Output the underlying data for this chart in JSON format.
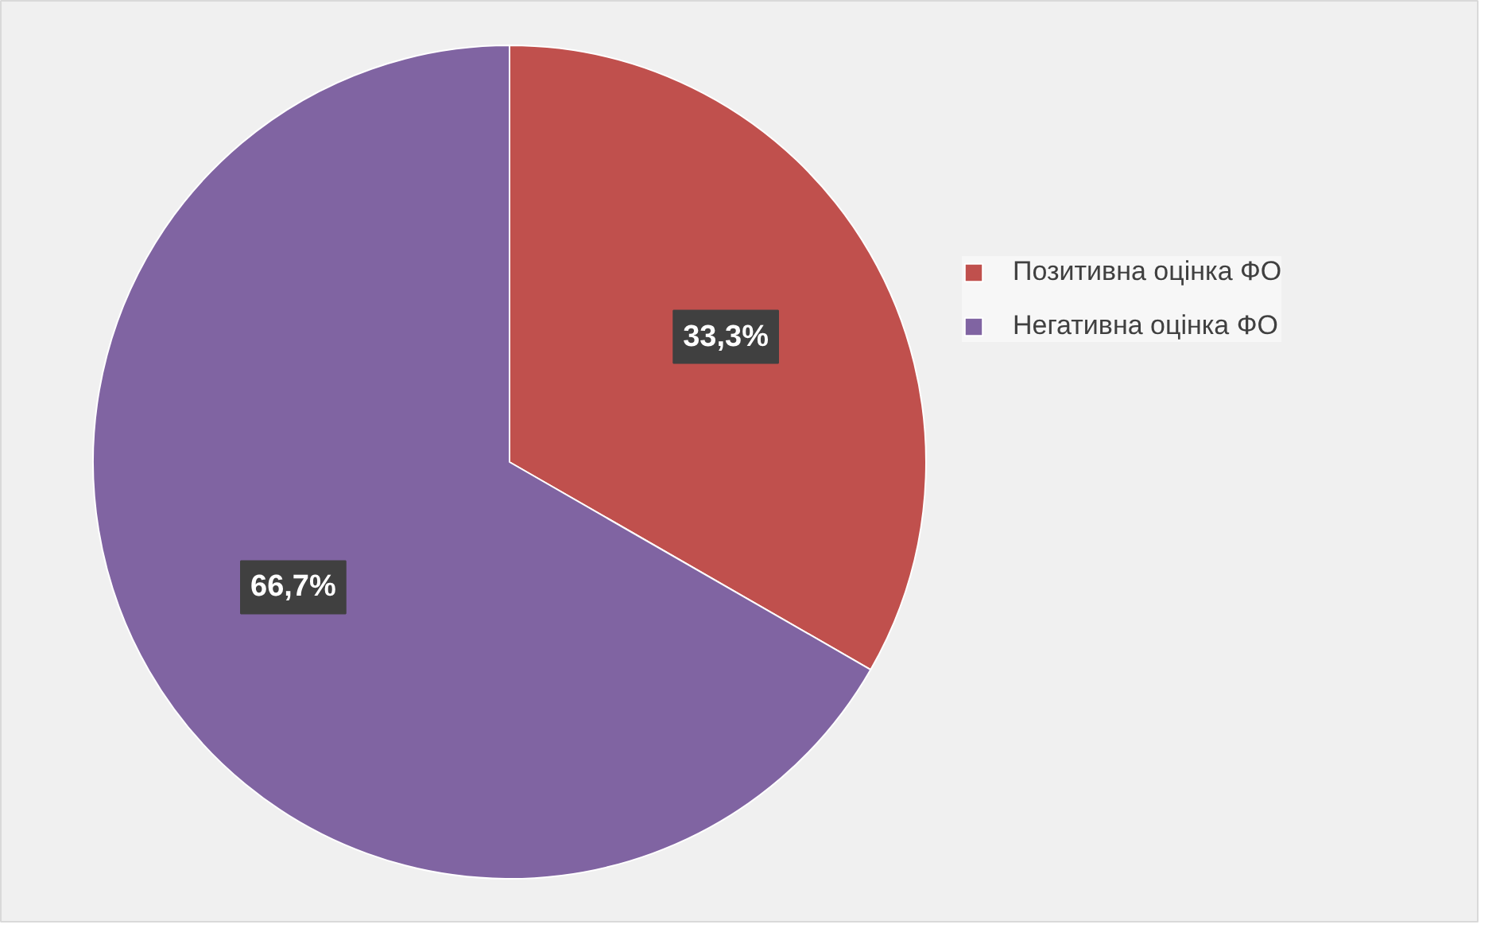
{
  "chart_data": {
    "type": "pie",
    "categories": [
      "Позитивна оцінка ФО",
      "Негативна оцінка ФО"
    ],
    "values": [
      33.3,
      66.7
    ],
    "colors": [
      "#c0504d",
      "#8064a2"
    ],
    "value_labels": [
      "33,3%",
      "66,7%"
    ],
    "legend": "right"
  }
}
